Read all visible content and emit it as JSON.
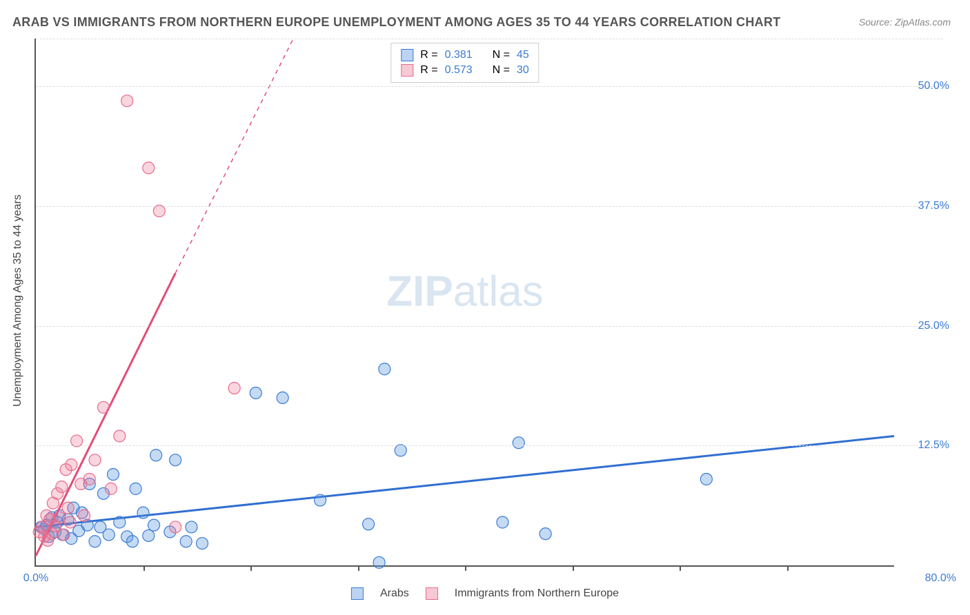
{
  "title": "ARAB VS IMMIGRANTS FROM NORTHERN EUROPE UNEMPLOYMENT AMONG AGES 35 TO 44 YEARS CORRELATION CHART",
  "source": "Source: ZipAtlas.com",
  "watermark_left": "ZIP",
  "watermark_right": "atlas",
  "chart": {
    "type": "scatter",
    "xlim": [
      0,
      80
    ],
    "ylim": [
      0,
      55
    ],
    "xtick_step": 10,
    "ytick_step": 12.5,
    "xlabel_min": "0.0%",
    "xlabel_max": "80.0%",
    "ytick_labels": [
      "12.5%",
      "25.0%",
      "37.5%",
      "50.0%"
    ],
    "ylabel": "Unemployment Among Ages 35 to 44 years",
    "grid_color": "#dddddd",
    "axis_color": "#555555",
    "background_color": "#ffffff",
    "marker_radius": 8.5,
    "marker_stroke_width": 1.2,
    "trend_line_width": 3,
    "trend_dash_width": 1.5
  },
  "series": [
    {
      "name": "Arabs",
      "swatch_fill": "#bcd3f1",
      "swatch_border": "#3a7bd5",
      "marker_fill": "rgba(90,150,220,0.35)",
      "marker_stroke": "#3a7bd5",
      "trend_color": "#2f6fd1",
      "R": "0.381",
      "N": "45",
      "trend_solid": {
        "x1": 0,
        "y1": 4.0,
        "x2": 80,
        "y2": 13.5
      },
      "trend_dash": null,
      "points": [
        [
          0.5,
          4.0
        ],
        [
          0.8,
          3.8
        ],
        [
          1.0,
          4.2
        ],
        [
          1.2,
          3.0
        ],
        [
          1.5,
          5.0
        ],
        [
          1.8,
          3.5
        ],
        [
          2.0,
          4.5
        ],
        [
          2.2,
          5.2
        ],
        [
          2.5,
          3.2
        ],
        [
          3.0,
          4.8
        ],
        [
          3.3,
          2.8
        ],
        [
          3.5,
          6.0
        ],
        [
          4.0,
          3.6
        ],
        [
          4.3,
          5.5
        ],
        [
          4.8,
          4.2
        ],
        [
          5.0,
          8.5
        ],
        [
          5.5,
          2.5
        ],
        [
          6.0,
          4.0
        ],
        [
          6.3,
          7.5
        ],
        [
          6.8,
          3.2
        ],
        [
          7.2,
          9.5
        ],
        [
          7.8,
          4.5
        ],
        [
          8.5,
          3.0
        ],
        [
          9.0,
          2.5
        ],
        [
          9.3,
          8.0
        ],
        [
          10.0,
          5.5
        ],
        [
          10.5,
          3.1
        ],
        [
          11.0,
          4.2
        ],
        [
          11.2,
          11.5
        ],
        [
          12.5,
          3.5
        ],
        [
          13.0,
          11.0
        ],
        [
          14.0,
          2.5
        ],
        [
          14.5,
          4.0
        ],
        [
          15.5,
          2.3
        ],
        [
          20.5,
          18.0
        ],
        [
          23.0,
          17.5
        ],
        [
          26.5,
          6.8
        ],
        [
          31.0,
          4.3
        ],
        [
          32.5,
          20.5
        ],
        [
          34.0,
          12.0
        ],
        [
          32.0,
          0.3
        ],
        [
          43.5,
          4.5
        ],
        [
          45.0,
          12.8
        ],
        [
          47.5,
          3.3
        ],
        [
          62.5,
          9.0
        ]
      ]
    },
    {
      "name": "Immigrants from Northern Europe",
      "swatch_fill": "#f6c9d4",
      "swatch_border": "#e86a8b",
      "marker_fill": "rgba(235,120,150,0.30)",
      "marker_stroke": "#e86a8b",
      "trend_color": "#e24d78",
      "R": "0.573",
      "N": "30",
      "trend_solid": {
        "x1": 0,
        "y1": 1.0,
        "x2": 13,
        "y2": 30.5
      },
      "trend_dash": {
        "x1": 13,
        "y1": 30.5,
        "x2": 24,
        "y2": 55
      },
      "points": [
        [
          0.3,
          3.5
        ],
        [
          0.6,
          4.0
        ],
        [
          0.8,
          3.0
        ],
        [
          1.0,
          5.2
        ],
        [
          1.1,
          2.6
        ],
        [
          1.3,
          4.8
        ],
        [
          1.5,
          3.3
        ],
        [
          1.6,
          6.5
        ],
        [
          1.8,
          4.1
        ],
        [
          2.0,
          7.5
        ],
        [
          2.2,
          5.0
        ],
        [
          2.4,
          8.2
        ],
        [
          2.6,
          3.2
        ],
        [
          2.8,
          10.0
        ],
        [
          3.0,
          6.0
        ],
        [
          3.2,
          4.5
        ],
        [
          3.3,
          10.5
        ],
        [
          3.8,
          13.0
        ],
        [
          4.2,
          8.5
        ],
        [
          4.5,
          5.2
        ],
        [
          5.0,
          9.0
        ],
        [
          5.5,
          11.0
        ],
        [
          6.3,
          16.5
        ],
        [
          7.0,
          8.0
        ],
        [
          8.5,
          48.5
        ],
        [
          10.5,
          41.5
        ],
        [
          11.5,
          37.0
        ],
        [
          13.0,
          4.0
        ],
        [
          18.5,
          18.5
        ],
        [
          7.8,
          13.5
        ]
      ]
    }
  ],
  "legend_bottom": [
    {
      "label": "Arabs",
      "fill": "#bcd3f1",
      "border": "#3a7bd5"
    },
    {
      "label": "Immigrants from Northern Europe",
      "fill": "#f6c9d4",
      "border": "#e86a8b"
    }
  ],
  "legend_top_labels": {
    "R": "R  =",
    "N": "N  ="
  }
}
